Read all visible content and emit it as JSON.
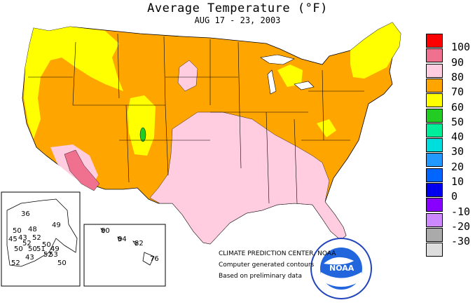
{
  "title": "Average Temperature (°F)",
  "subtitle": "AUG 17 - 23, 2003",
  "legend": [
    {
      "label": "100",
      "color": "#ff0000"
    },
    {
      "label": "90",
      "color": "#f07090"
    },
    {
      "label": "80",
      "color": "#ffcce0"
    },
    {
      "label": "70",
      "color": "#ffa500"
    },
    {
      "label": "60",
      "color": "#ffff00"
    },
    {
      "label": "50",
      "color": "#22cc22"
    },
    {
      "label": "40",
      "color": "#00ee99"
    },
    {
      "label": "30",
      "color": "#00dddd"
    },
    {
      "label": "20",
      "color": "#2299ff"
    },
    {
      "label": "10",
      "color": "#0066ff"
    },
    {
      "label": "0",
      "color": "#0000ee"
    },
    {
      "label": "-10",
      "color": "#8800ff"
    },
    {
      "label": "-20",
      "color": "#cc88ff"
    },
    {
      "label": "-30",
      "color": "#aaaaaa"
    },
    {
      "label": "",
      "color": "#dddddd"
    }
  ],
  "credits": {
    "line1": "CLIMATE PREDICTION CENTER, NOAA",
    "line2": "Computer generated contours",
    "line3": "Based on preliminary data"
  },
  "logo": {
    "text": "NOAA",
    "ring_text": "NATIONAL OCEANIC AND ATMOSPHERIC ADMINISTRATION - U.S. DEPARTMENT OF COMMERCE"
  },
  "alaska_labels": [
    "36",
    "50",
    "48",
    "52",
    "49",
    "52",
    "50",
    "45",
    "43",
    "50",
    "51",
    "53",
    "49",
    "50",
    "52",
    "52",
    "50",
    "43"
  ],
  "hawaii_labels": [
    "80",
    "84",
    "82",
    "76"
  ]
}
